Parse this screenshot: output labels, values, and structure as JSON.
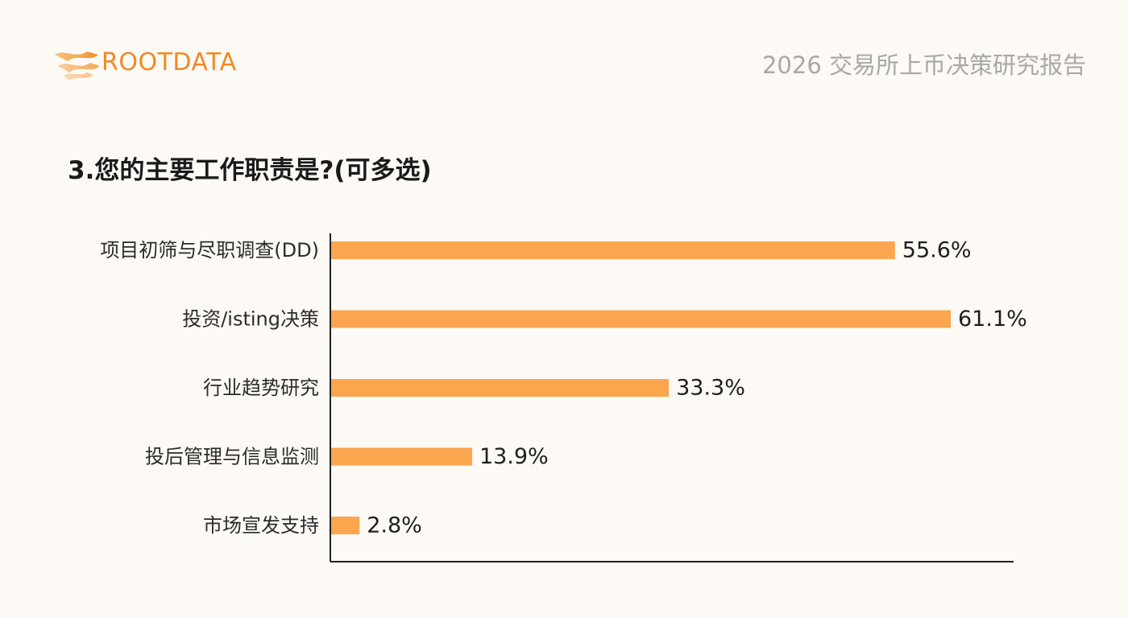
{
  "brand": {
    "logo_text": "ROOTDATA",
    "accent": "#f08a24"
  },
  "header": {
    "report_title": "2026 交易所上币决策研究报告"
  },
  "question": "3.您的主要工作职责是?(可多选)",
  "chart_data": {
    "type": "bar",
    "orientation": "horizontal",
    "categories": [
      "项目初筛与尽职调查(DD)",
      "投资/isting决策",
      "行业趋势研究",
      "投后管理与信息监测",
      "市场宣发支持"
    ],
    "values": [
      55.6,
      61.1,
      33.3,
      13.9,
      2.8
    ],
    "value_labels": [
      "55.6%",
      "61.1%",
      "33.3%",
      "13.9%",
      "2.8%"
    ],
    "unit": "%",
    "bar_color": "#fba54f",
    "title": "",
    "xlabel": "",
    "ylabel": "",
    "grid": false,
    "legend": "none"
  }
}
